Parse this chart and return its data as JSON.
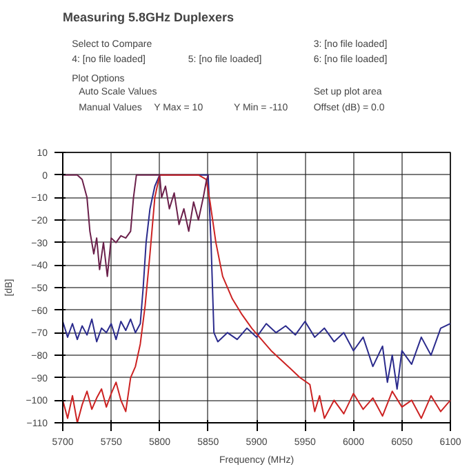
{
  "chart_data": {
    "type": "line",
    "title": "Measuring 5.8GHz Duplexers",
    "xlabel": "Frequency (MHz)",
    "ylabel": "[dB]",
    "annotations": [
      "Select to Compare",
      "3: [no file loaded]",
      "4: [no file loaded]",
      "5: [no file loaded]",
      "6: [no file loaded]",
      "Plot Options",
      "Auto Scale Values",
      "Manual Values",
      "Y Max = 10",
      "Y Min = -110",
      "Offset (dB) = 0.0",
      "Set up plot area"
    ],
    "xlim": [
      5700,
      6100
    ],
    "ylim": [
      -110,
      10
    ],
    "xticks": [
      5700,
      5750,
      5800,
      5850,
      5900,
      5950,
      6000,
      6050,
      6100
    ],
    "yticks": [
      10,
      0,
      -10,
      -20,
      -30,
      -40,
      -50,
      -60,
      -70,
      -80,
      -90,
      -100,
      -110
    ],
    "grid": true,
    "line_style": "solid",
    "series": [
      {
        "color": "#2a2a8c",
        "x": [
          5700,
          5705,
          5710,
          5715,
          5720,
          5725,
          5730,
          5735,
          5740,
          5745,
          5750,
          5755,
          5760,
          5765,
          5770,
          5775,
          5780,
          5783,
          5786,
          5790,
          5795,
          5800,
          5820,
          5840,
          5850,
          5853,
          5856,
          5860,
          5870,
          5880,
          5890,
          5900,
          5910,
          5920,
          5930,
          5940,
          5950,
          5960,
          5970,
          5980,
          5990,
          6000,
          6010,
          6020,
          6030,
          6035,
          6040,
          6045,
          6050,
          6060,
          6070,
          6080,
          6090,
          6100
        ],
        "values": [
          -65,
          -72,
          -66,
          -73,
          -67,
          -71,
          -64,
          -74,
          -68,
          -70,
          -66,
          -73,
          -65,
          -69,
          -64,
          -70,
          -66,
          -50,
          -30,
          -15,
          -5,
          0,
          0,
          0,
          0,
          -30,
          -70,
          -74,
          -70,
          -73,
          -68,
          -72,
          -66,
          -70,
          -67,
          -71,
          -65,
          -72,
          -68,
          -74,
          -70,
          -78,
          -72,
          -85,
          -76,
          -92,
          -80,
          -95,
          -78,
          -84,
          -72,
          -80,
          -68,
          -66
        ]
      },
      {
        "color": "#cc2222",
        "x": [
          5700,
          5705,
          5710,
          5715,
          5720,
          5725,
          5730,
          5735,
          5740,
          5745,
          5750,
          5755,
          5760,
          5765,
          5770,
          5775,
          5780,
          5785,
          5790,
          5795,
          5800,
          5820,
          5840,
          5848,
          5852,
          5858,
          5865,
          5875,
          5885,
          5895,
          5905,
          5915,
          5925,
          5935,
          5945,
          5955,
          5960,
          5965,
          5970,
          5980,
          5990,
          6000,
          6010,
          6020,
          6030,
          6040,
          6050,
          6060,
          6070,
          6080,
          6090,
          6100
        ],
        "values": [
          -100,
          -108,
          -98,
          -110,
          -102,
          -96,
          -104,
          -99,
          -95,
          -103,
          -97,
          -92,
          -100,
          -105,
          -90,
          -85,
          -75,
          -58,
          -35,
          -10,
          0,
          0,
          0,
          -2,
          -12,
          -30,
          -45,
          -55,
          -62,
          -68,
          -73,
          -78,
          -82,
          -86,
          -90,
          -93,
          -105,
          -98,
          -108,
          -100,
          -106,
          -97,
          -104,
          -99,
          -107,
          -96,
          -103,
          -100,
          -108,
          -98,
          -105,
          -100
        ]
      },
      {
        "color": "#6a1f4a",
        "x": [
          5700,
          5715,
          5720,
          5725,
          5728,
          5732,
          5735,
          5738,
          5742,
          5746,
          5750,
          5755,
          5760,
          5765,
          5770,
          5773,
          5776,
          5800,
          5802,
          5806,
          5810,
          5815,
          5820,
          5825,
          5830,
          5835,
          5840,
          5845,
          5848,
          5850
        ],
        "values": [
          0,
          0,
          -2,
          -10,
          -25,
          -35,
          -28,
          -42,
          -30,
          -45,
          -28,
          -30,
          -27,
          -28,
          -25,
          -10,
          0,
          0,
          -10,
          -5,
          -15,
          -8,
          -22,
          -15,
          -25,
          -12,
          -20,
          -10,
          -3,
          0
        ]
      }
    ]
  }
}
